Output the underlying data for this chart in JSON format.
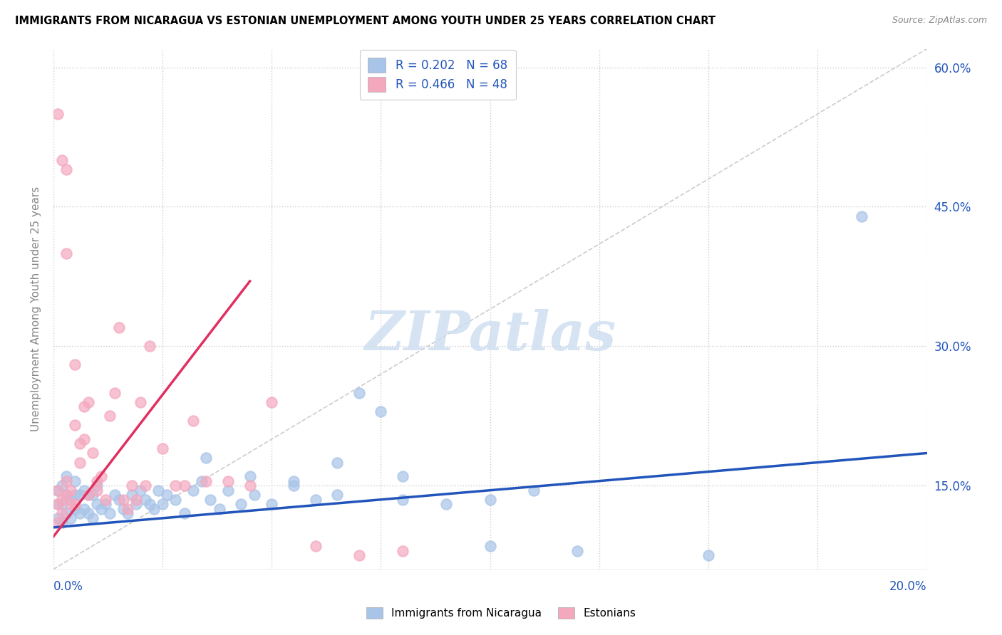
{
  "title": "IMMIGRANTS FROM NICARAGUA VS ESTONIAN UNEMPLOYMENT AMONG YOUTH UNDER 25 YEARS CORRELATION CHART",
  "source": "Source: ZipAtlas.com",
  "blue_label": "Immigrants from Nicaragua",
  "pink_label": "Estonians",
  "blue_r": "R = 0.202",
  "blue_n": "N = 68",
  "pink_r": "R = 0.466",
  "pink_n": "N = 48",
  "blue_color": "#a8c4e8",
  "pink_color": "#f4a8be",
  "blue_line_color": "#2255bb",
  "pink_line_color": "#e03060",
  "diag_color": "#cccccc",
  "watermark_color": "#ccddf0",
  "watermark": "ZIPatlas",
  "xlim": [
    0.0,
    0.2
  ],
  "ylim": [
    0.06,
    0.62
  ],
  "ylabel_ticks": [
    0.15,
    0.3,
    0.45,
    0.6
  ],
  "ylabel_tick_labels": [
    "15.0%",
    "30.0%",
    "45.0%",
    "60.0%"
  ],
  "xtick_positions": [
    0.0,
    0.025,
    0.05,
    0.075,
    0.1,
    0.125,
    0.15,
    0.175,
    0.2
  ],
  "blue_trend": [
    0.0,
    0.2,
    0.105,
    0.185
  ],
  "pink_trend": [
    0.0,
    0.045,
    0.095,
    0.37
  ],
  "blue_scatter_x": [
    0.001,
    0.001,
    0.001,
    0.002,
    0.002,
    0.002,
    0.003,
    0.003,
    0.003,
    0.004,
    0.004,
    0.005,
    0.005,
    0.005,
    0.006,
    0.006,
    0.007,
    0.007,
    0.008,
    0.008,
    0.009,
    0.009,
    0.01,
    0.01,
    0.011,
    0.012,
    0.013,
    0.014,
    0.015,
    0.016,
    0.017,
    0.018,
    0.019,
    0.02,
    0.021,
    0.022,
    0.023,
    0.024,
    0.025,
    0.026,
    0.028,
    0.03,
    0.032,
    0.034,
    0.036,
    0.038,
    0.04,
    0.043,
    0.046,
    0.05,
    0.055,
    0.06,
    0.065,
    0.07,
    0.075,
    0.08,
    0.09,
    0.1,
    0.11,
    0.12,
    0.035,
    0.045,
    0.055,
    0.065,
    0.08,
    0.1,
    0.15,
    0.185
  ],
  "blue_scatter_y": [
    0.115,
    0.13,
    0.145,
    0.11,
    0.13,
    0.15,
    0.12,
    0.14,
    0.16,
    0.115,
    0.135,
    0.125,
    0.14,
    0.155,
    0.12,
    0.14,
    0.125,
    0.145,
    0.12,
    0.14,
    0.115,
    0.14,
    0.13,
    0.15,
    0.125,
    0.13,
    0.12,
    0.14,
    0.135,
    0.125,
    0.12,
    0.14,
    0.13,
    0.145,
    0.135,
    0.13,
    0.125,
    0.145,
    0.13,
    0.14,
    0.135,
    0.12,
    0.145,
    0.155,
    0.135,
    0.125,
    0.145,
    0.13,
    0.14,
    0.13,
    0.15,
    0.135,
    0.14,
    0.25,
    0.23,
    0.135,
    0.13,
    0.135,
    0.145,
    0.08,
    0.18,
    0.16,
    0.155,
    0.175,
    0.16,
    0.085,
    0.075,
    0.44
  ],
  "pink_scatter_x": [
    0.001,
    0.001,
    0.001,
    0.001,
    0.002,
    0.002,
    0.002,
    0.003,
    0.003,
    0.003,
    0.004,
    0.004,
    0.005,
    0.005,
    0.006,
    0.006,
    0.007,
    0.007,
    0.008,
    0.008,
    0.009,
    0.01,
    0.01,
    0.011,
    0.012,
    0.013,
    0.014,
    0.015,
    0.016,
    0.017,
    0.018,
    0.019,
    0.02,
    0.021,
    0.022,
    0.025,
    0.028,
    0.03,
    0.032,
    0.035,
    0.04,
    0.045,
    0.05,
    0.06,
    0.07,
    0.08,
    0.003,
    0.005
  ],
  "pink_scatter_y": [
    0.11,
    0.13,
    0.145,
    0.55,
    0.12,
    0.135,
    0.5,
    0.14,
    0.155,
    0.49,
    0.13,
    0.145,
    0.13,
    0.215,
    0.175,
    0.195,
    0.2,
    0.235,
    0.14,
    0.24,
    0.185,
    0.145,
    0.155,
    0.16,
    0.135,
    0.225,
    0.25,
    0.32,
    0.135,
    0.125,
    0.15,
    0.135,
    0.24,
    0.15,
    0.3,
    0.19,
    0.15,
    0.15,
    0.22,
    0.155,
    0.155,
    0.15,
    0.24,
    0.085,
    0.075,
    0.08,
    0.4,
    0.28
  ]
}
